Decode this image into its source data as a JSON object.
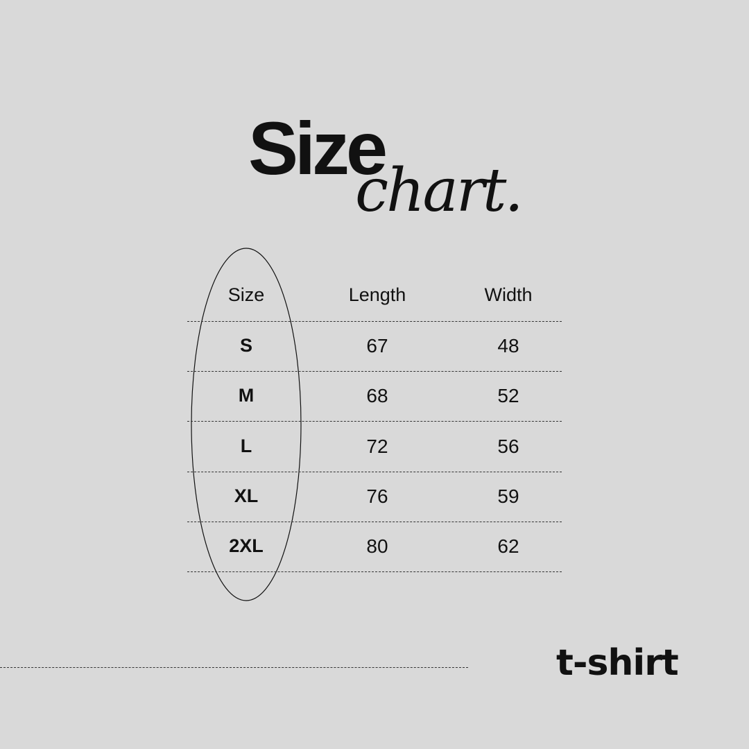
{
  "title": {
    "main": "Size",
    "script": "chart."
  },
  "table": {
    "headers": [
      "Size",
      "Length",
      "Width"
    ],
    "rows": [
      [
        "S",
        "67",
        "48"
      ],
      [
        "M",
        "68",
        "52"
      ],
      [
        "L",
        "72",
        "56"
      ],
      [
        "XL",
        "76",
        "59"
      ],
      [
        "2XL",
        "80",
        "62"
      ]
    ]
  },
  "product": "t-shirt",
  "colors": {
    "background": "#d9d9d9",
    "text": "#111111"
  }
}
